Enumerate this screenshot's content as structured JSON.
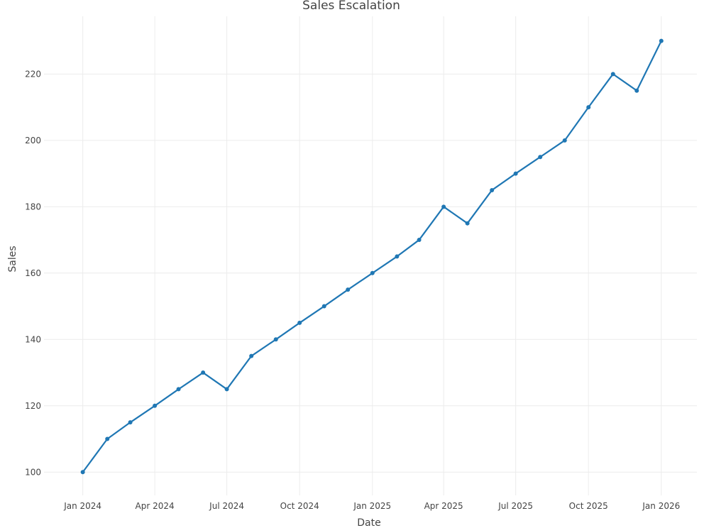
{
  "chart_data": {
    "type": "line",
    "title": "Sales Escalation",
    "xlabel": "Date",
    "ylabel": "Sales",
    "x": [
      "2024-01-01",
      "2024-02-01",
      "2024-03-01",
      "2024-04-01",
      "2024-05-01",
      "2024-06-01",
      "2024-07-01",
      "2024-08-01",
      "2024-09-01",
      "2024-10-01",
      "2024-11-01",
      "2024-12-01",
      "2025-01-01",
      "2025-02-01",
      "2025-03-01",
      "2025-04-01",
      "2025-05-01",
      "2025-06-01",
      "2025-07-01",
      "2025-08-01",
      "2025-09-01",
      "2025-10-01",
      "2025-11-01",
      "2025-12-01",
      "2026-01-01"
    ],
    "series": [
      {
        "values": [
          100,
          110,
          115,
          120,
          125,
          130,
          125,
          135,
          140,
          145,
          150,
          155,
          160,
          165,
          170,
          180,
          175,
          185,
          190,
          195,
          200,
          210,
          220,
          215,
          230
        ],
        "color": "#1f77b4"
      }
    ],
    "x_ticks": [
      {
        "value": "2024-01-01",
        "label": "Jan 2024"
      },
      {
        "value": "2024-04-01",
        "label": "Apr 2024"
      },
      {
        "value": "2024-07-01",
        "label": "Jul 2024"
      },
      {
        "value": "2024-10-01",
        "label": "Oct 2024"
      },
      {
        "value": "2025-01-01",
        "label": "Jan 2025"
      },
      {
        "value": "2025-04-01",
        "label": "Apr 2025"
      },
      {
        "value": "2025-07-01",
        "label": "Jul 2025"
      },
      {
        "value": "2025-10-01",
        "label": "Oct 2025"
      },
      {
        "value": "2026-01-01",
        "label": "Jan 2026"
      }
    ],
    "y_ticks": [
      100,
      120,
      140,
      160,
      180,
      200,
      220
    ],
    "xlim": [
      "2023-11-13",
      "2026-02-15"
    ],
    "ylim": [
      93,
      237.4
    ],
    "grid": true,
    "legend": false
  }
}
